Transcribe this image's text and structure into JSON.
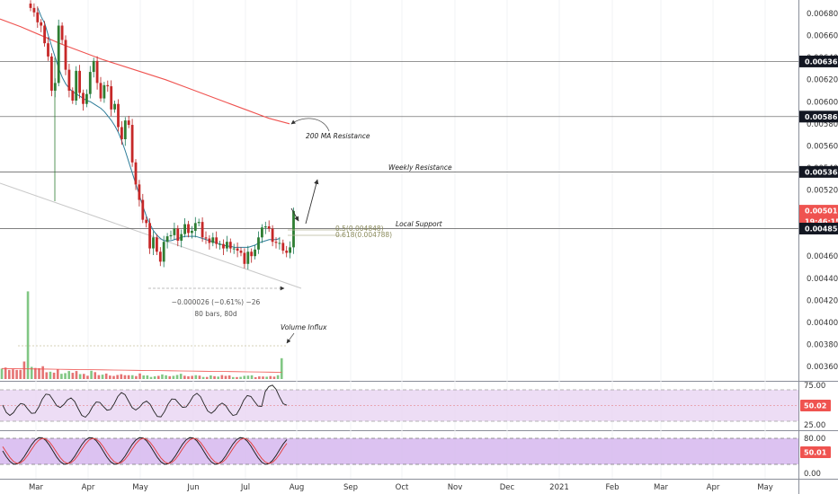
{
  "chart_data": {
    "type": "candlestick",
    "x_labels": [
      "Mar",
      "Apr",
      "May",
      "Jun",
      "Jul",
      "Aug",
      "Sep",
      "Oct",
      "Nov",
      "Dec",
      "2021",
      "Feb",
      "Mar",
      "Apr",
      "May"
    ],
    "price_axis": {
      "ticks": [
        "0.006800",
        "0.006600",
        "0.006400",
        "0.006200",
        "0.006000",
        "0.005800",
        "0.005600",
        "0.005400",
        "0.005200",
        "0.004600",
        "0.004400",
        "0.004200",
        "0.004000",
        "0.003800",
        "0.003600"
      ],
      "ylim": [
        0.0035,
        0.0069
      ],
      "tags": [
        {
          "value": "0.006365",
          "color": "#131722",
          "text_color": "#ffffff"
        },
        {
          "value": "0.005865",
          "color": "#131722",
          "text_color": "#ffffff"
        },
        {
          "value": "0.005364",
          "color": "#131722",
          "text_color": "#ffffff"
        },
        {
          "value": "0.005012",
          "color": "#ef5350",
          "text_color": "#ffffff"
        },
        {
          "value": "19:46:15",
          "color": "#ef5350",
          "text_color": "#ffffff"
        },
        {
          "value": "0.004850",
          "color": "#131722",
          "text_color": "#ffffff"
        }
      ],
      "horizontal_lines": [
        0.006365,
        0.005865,
        0.005364,
        0.00485
      ]
    },
    "annotations": {
      "ma_resistance": "200 MA Resistance",
      "weekly_resistance": "Weekly Resistance",
      "local_support": "Local Support",
      "volume_influx": "Volume Influx",
      "fib_05": "0.5(0.004848)",
      "fib_0618": "0.618(0.004788)",
      "measure_line1": "−0.000026 (−0.61%) −26",
      "measure_line2": "80 bars, 80d"
    },
    "closes": [
      0.00685,
      0.00681,
      0.00672,
      0.00669,
      0.00653,
      0.00641,
      0.0061,
      0.00617,
      0.00669,
      0.00656,
      0.00629,
      0.0061,
      0.00601,
      0.00628,
      0.00608,
      0.00598,
      0.00607,
      0.00627,
      0.00637,
      0.00617,
      0.00603,
      0.00615,
      0.00614,
      0.00593,
      0.00598,
      0.00577,
      0.00566,
      0.00583,
      0.00579,
      0.00545,
      0.00525,
      0.00511,
      0.00493,
      0.0049,
      0.00467,
      0.00477,
      0.00464,
      0.00455,
      0.00473,
      0.00478,
      0.00479,
      0.00485,
      0.00474,
      0.0048,
      0.00489,
      0.00481,
      0.00483,
      0.0049,
      0.00491,
      0.00477,
      0.00476,
      0.00472,
      0.00477,
      0.00471,
      0.00471,
      0.00467,
      0.00473,
      0.00467,
      0.00467,
      0.00465,
      0.00463,
      0.00453,
      0.00464,
      0.0046,
      0.00466,
      0.00477,
      0.00486,
      0.00487,
      0.00485,
      0.00473,
      0.00472,
      0.00472,
      0.00465,
      0.00463,
      0.00468,
      0.00501
    ],
    "volume": [
      0.95,
      1.05,
      0.83,
      0.89,
      0.83,
      0.84,
      1.6,
      8.0,
      1.11,
      1.01,
      0.99,
      1.17,
      0.62,
      0.67,
      0.58,
      0.87,
      0.48,
      0.54,
      0.73,
      0.57,
      0.73,
      0.45,
      0.47,
      0.3,
      0.76,
      0.63,
      0.36,
      0.4,
      0.5,
      0.32,
      0.28,
      0.37,
      0.44,
      0.35,
      0.35,
      0.35,
      0.27,
      0.51,
      0.33,
      0.33,
      0.19,
      0.25,
      0.29,
      0.42,
      0.34,
      0.26,
      0.29,
      0.37,
      0.48,
      0.3,
      0.25,
      0.29,
      0.35,
      0.31,
      0.19,
      0.19,
      0.33,
      0.26,
      0.22,
      0.36,
      0.29,
      0.33,
      0.18,
      0.18,
      0.2,
      0.29,
      0.31,
      0.34,
      0.17,
      0.24,
      0.23,
      0.21,
      0.27,
      0.22,
      0.35,
      1.9
    ],
    "ma_fast": [
      0.00685,
      0.00677,
      0.00671,
      0.0066,
      0.0065,
      0.0064,
      0.0063,
      0.00622,
      0.00616,
      0.00612,
      0.00609,
      0.00607,
      0.00605,
      0.00603,
      0.00601,
      0.006,
      0.00598,
      0.00596,
      0.00594,
      0.00591,
      0.00587,
      0.00583,
      0.00578,
      0.00572,
      0.00564,
      0.00555,
      0.00545,
      0.00535,
      0.00525,
      0.00515,
      0.00505,
      0.00496,
      0.00489,
      0.00483,
      0.00479,
      0.00476,
      0.00474,
      0.00474,
      0.00474,
      0.00475,
      0.00476,
      0.00477,
      0.00478,
      0.00478,
      0.00478,
      0.00478,
      0.00477,
      0.00476,
      0.00475,
      0.00474,
      0.00473,
      0.00472,
      0.00471,
      0.0047,
      0.00469,
      0.00469,
      0.00468,
      0.00468,
      0.00468,
      0.00468,
      0.00468,
      0.00469,
      0.0047,
      0.00472,
      0.00473,
      0.00474,
      0.00475,
      0.00475,
      0.00475,
      0.00476
    ],
    "ma_200": [
      0.00675,
      0.00668,
      0.0066,
      0.00652,
      0.00645,
      0.00638,
      0.00632,
      0.00626,
      0.0062,
      0.00613,
      0.00606,
      0.00599,
      0.00592,
      0.00585,
      0.0058
    ],
    "rsi": {
      "ticks": [
        "75.00",
        "25.00"
      ],
      "last": "50.02"
    },
    "stoch": {
      "ticks": [
        "80.00",
        "0.00"
      ],
      "last": "50.01"
    }
  }
}
